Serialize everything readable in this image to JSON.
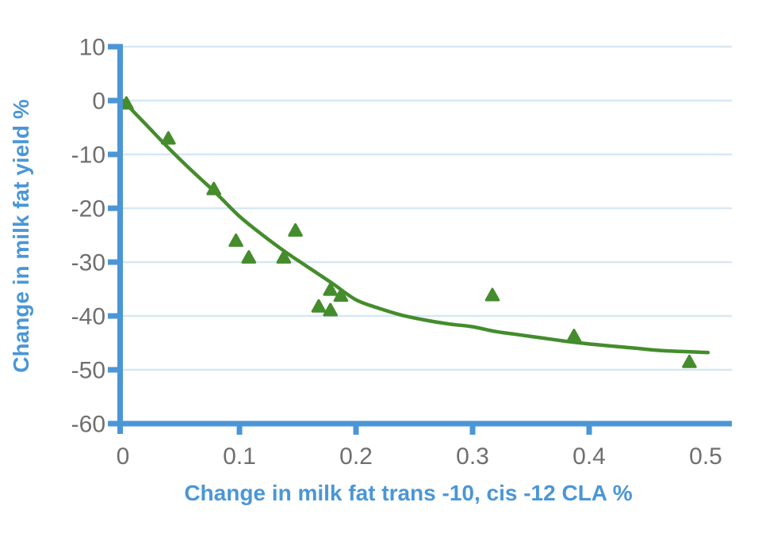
{
  "chart_data": {
    "type": "scatter",
    "title": "",
    "xlabel": "Change in milk fat trans -10, cis -12 CLA %",
    "ylabel": "Change in milk fat yield %",
    "xlim": [
      0,
      0.522
    ],
    "ylim": [
      -60,
      10
    ],
    "grid": "horizontal-gridlines-on",
    "legend": "none",
    "x_ticks": {
      "values": [
        0,
        0.1,
        0.2,
        0.3,
        0.4,
        0.5
      ],
      "labels": [
        "0",
        "0.1",
        "0.2",
        "0.3",
        "0.4",
        "0.5"
      ],
      "ticks_with_marks": [
        0.1,
        0.2,
        0.3,
        0.4
      ]
    },
    "y_ticks": {
      "values": [
        10,
        0,
        -10,
        -20,
        -30,
        -40,
        -50,
        -60
      ],
      "labels": [
        "10",
        "0",
        "-10",
        "-20",
        "-30",
        "-40",
        "-50",
        "-60"
      ]
    },
    "series": [
      {
        "name": "observed-points",
        "type": "scatter",
        "marker": "triangle",
        "color": "#448c2c",
        "points": [
          [
            0.003,
            -0.5
          ],
          [
            0.039,
            -7.0
          ],
          [
            0.078,
            -16.4
          ],
          [
            0.097,
            -26.0
          ],
          [
            0.108,
            -29.1
          ],
          [
            0.138,
            -29.1
          ],
          [
            0.148,
            -24.1
          ],
          [
            0.168,
            -38.2
          ],
          [
            0.178,
            -35.1
          ],
          [
            0.178,
            -38.9
          ],
          [
            0.187,
            -36.2
          ],
          [
            0.317,
            -36.1
          ],
          [
            0.387,
            -43.7
          ],
          [
            0.486,
            -48.5
          ]
        ]
      },
      {
        "name": "fitted-curve",
        "type": "line",
        "color": "#448c2c",
        "points": [
          [
            0.0,
            0.0
          ],
          [
            0.02,
            -4.5
          ],
          [
            0.04,
            -9.0
          ],
          [
            0.06,
            -13.2
          ],
          [
            0.08,
            -17.2
          ],
          [
            0.1,
            -21.5
          ],
          [
            0.12,
            -25.0
          ],
          [
            0.14,
            -28.2
          ],
          [
            0.16,
            -31.1
          ],
          [
            0.18,
            -34.0
          ],
          [
            0.2,
            -37.0
          ],
          [
            0.22,
            -38.6
          ],
          [
            0.24,
            -39.9
          ],
          [
            0.26,
            -40.8
          ],
          [
            0.28,
            -41.5
          ],
          [
            0.3,
            -42.0
          ],
          [
            0.32,
            -42.9
          ],
          [
            0.34,
            -43.5
          ],
          [
            0.36,
            -44.1
          ],
          [
            0.38,
            -44.7
          ],
          [
            0.4,
            -45.2
          ],
          [
            0.42,
            -45.6
          ],
          [
            0.44,
            -46.0
          ],
          [
            0.46,
            -46.4
          ],
          [
            0.48,
            -46.6
          ],
          [
            0.502,
            -46.8
          ]
        ]
      }
    ],
    "colors": {
      "axis_blue": "#4b96d6",
      "title_blue": "#4b96d6",
      "data_green": "#448c2c",
      "gridline_blue": "#d7e7f4",
      "tick_label_gray": "#6f6f6f",
      "background": "#ffffff"
    }
  }
}
